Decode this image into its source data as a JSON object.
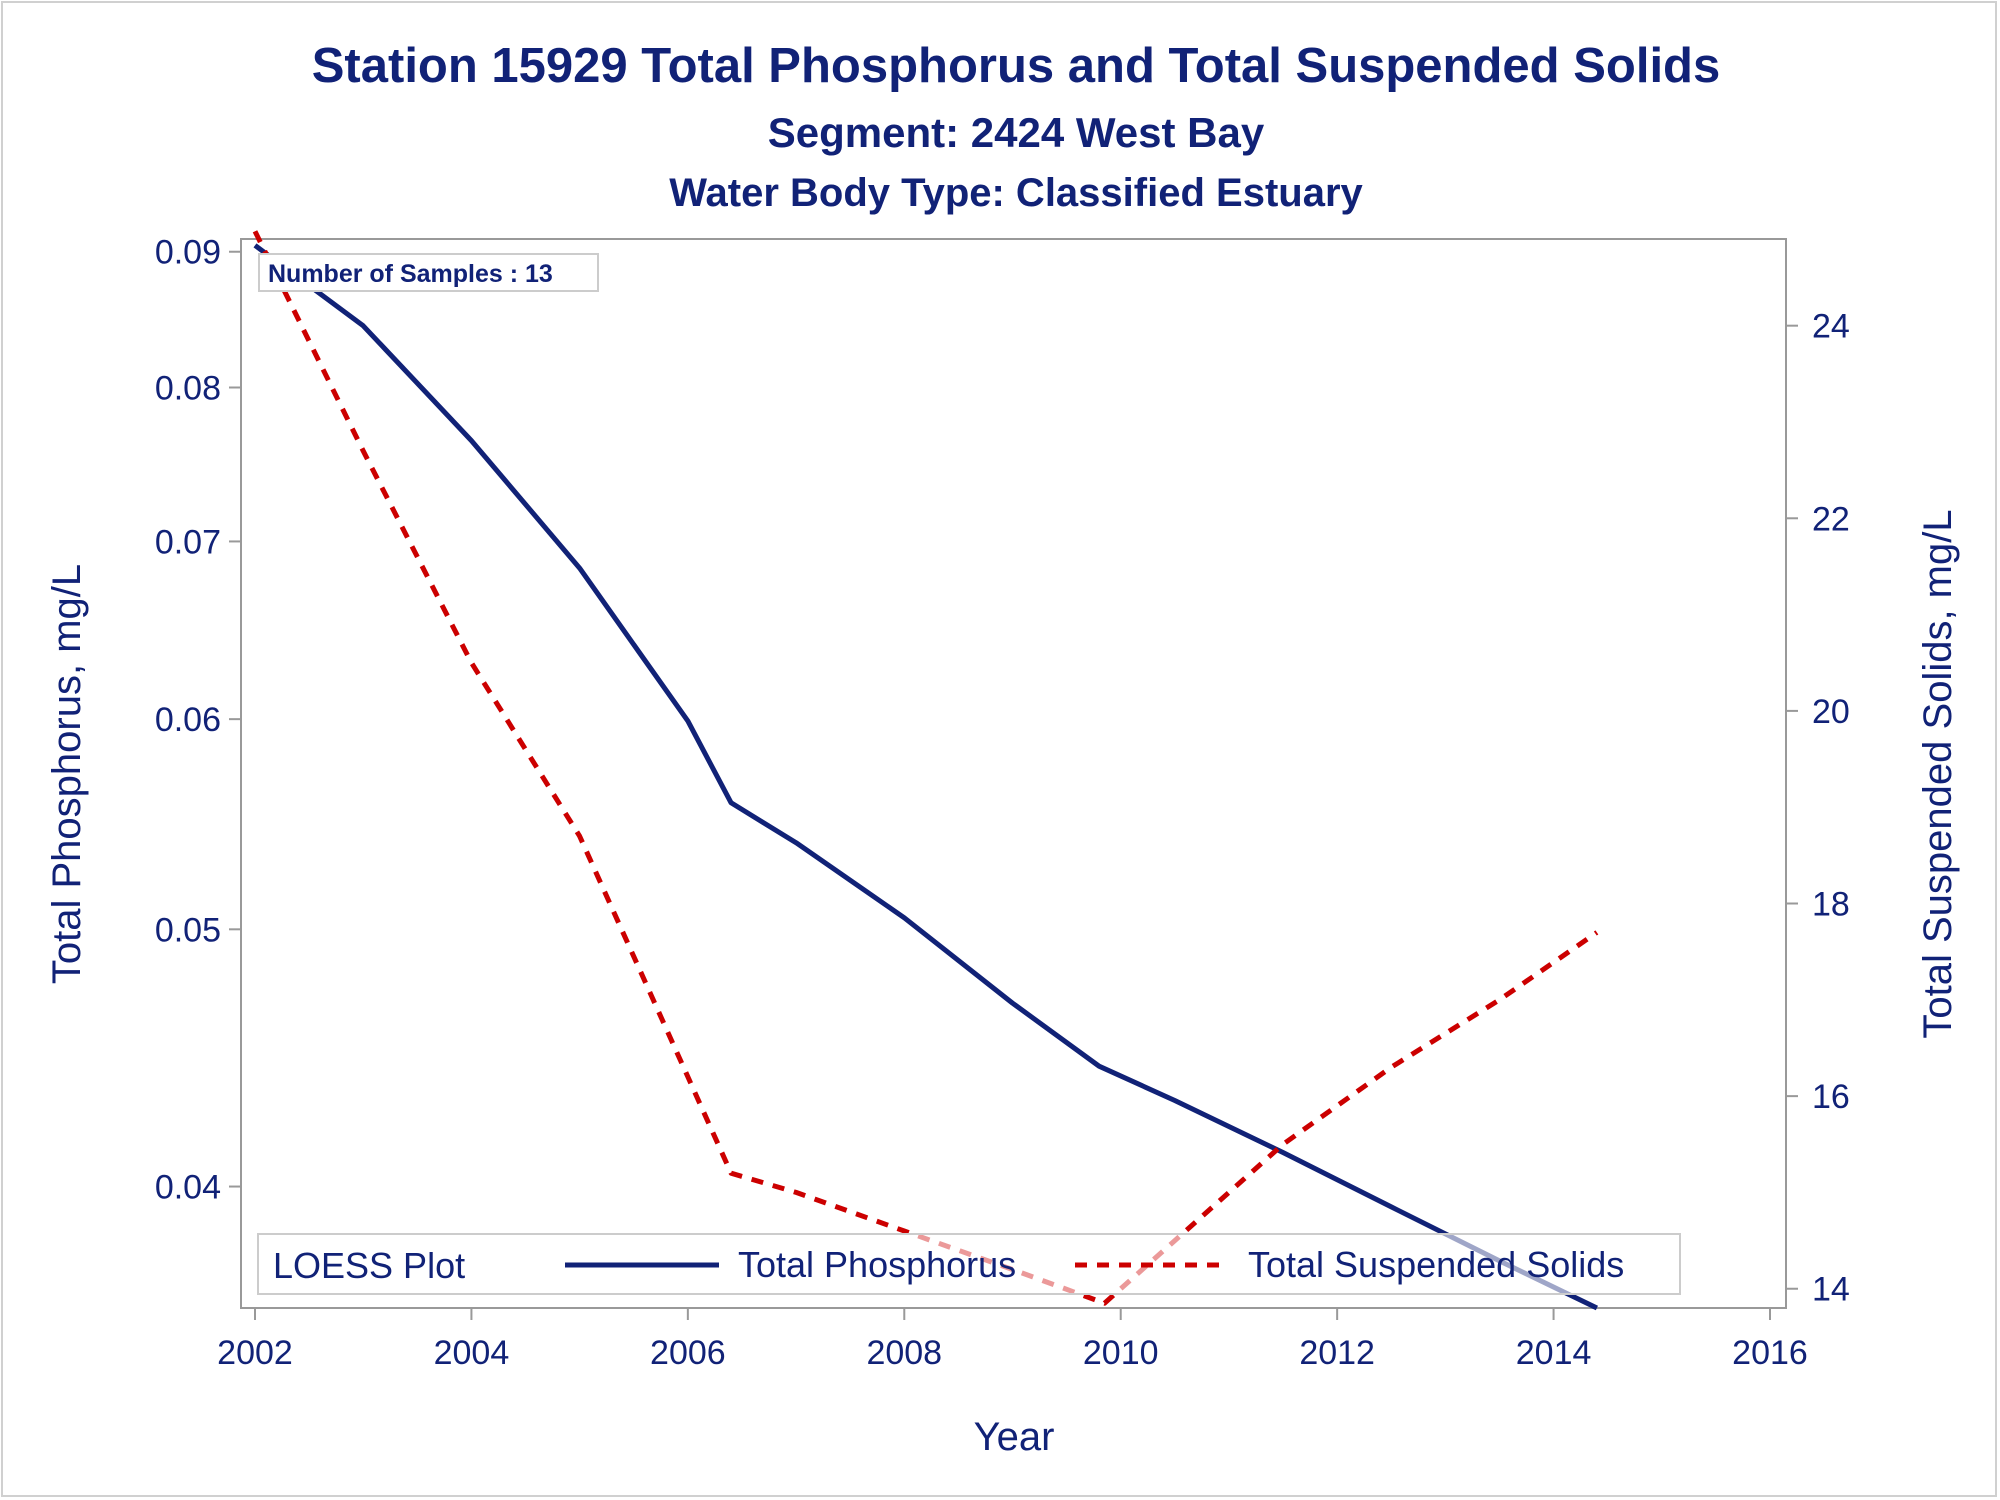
{
  "chart_data": {
    "type": "line",
    "title": "Station 15929  Total Phosphorus and Total Suspended Solids",
    "subtitle": "Segment: 2424  West Bay",
    "subtitle2": "Water Body Type: Classified Estuary",
    "xlabel": "Year",
    "ylabel": "Total Phosphorus, mg/L",
    "y2label": "Total Suspended Solids, mg/L",
    "xlim": [
      2002,
      2016
    ],
    "ylim": [
      0.036,
      0.091
    ],
    "y_scale": "log",
    "y2lim": [
      13.8,
      24.9
    ],
    "xticks": [
      2002,
      2004,
      2006,
      2008,
      2010,
      2012,
      2014,
      2016
    ],
    "yticks": [
      0.04,
      0.05,
      0.06,
      0.07,
      0.08,
      0.09
    ],
    "y2ticks": [
      14,
      16,
      18,
      20,
      22,
      24
    ],
    "annotation": "Number of Samples : 13",
    "legend_title": "LOESS Plot",
    "legend_position": "bottom-inside",
    "series": [
      {
        "name": "Total Phosphorus",
        "axis": "left",
        "style": "solid",
        "color": "#112277",
        "x": [
          2002.0,
          2003.0,
          2004.0,
          2005.0,
          2006.0,
          2006.4,
          2007.0,
          2008.0,
          2009.0,
          2009.8,
          2010.5,
          2011.5,
          2012.5,
          2013.5,
          2014.4
        ],
        "y": [
          0.0905,
          0.0844,
          0.0764,
          0.0684,
          0.0599,
          0.0558,
          0.0539,
          0.0505,
          0.0469,
          0.0444,
          0.0431,
          0.0412,
          0.0393,
          0.0375,
          0.036
        ]
      },
      {
        "name": "Total Suspended Solids",
        "axis": "right",
        "style": "dashed",
        "color": "#cc0000",
        "x": [
          2002.0,
          2003.0,
          2004.0,
          2005.0,
          2006.0,
          2006.4,
          2007.0,
          2008.0,
          2009.0,
          2009.85,
          2010.5,
          2011.5,
          2012.5,
          2013.5,
          2014.4
        ],
        "y": [
          24.98,
          22.7,
          20.5,
          18.7,
          16.2,
          15.2,
          15.0,
          14.6,
          14.2,
          13.85,
          14.5,
          15.5,
          16.3,
          17.0,
          17.7
        ]
      }
    ]
  }
}
